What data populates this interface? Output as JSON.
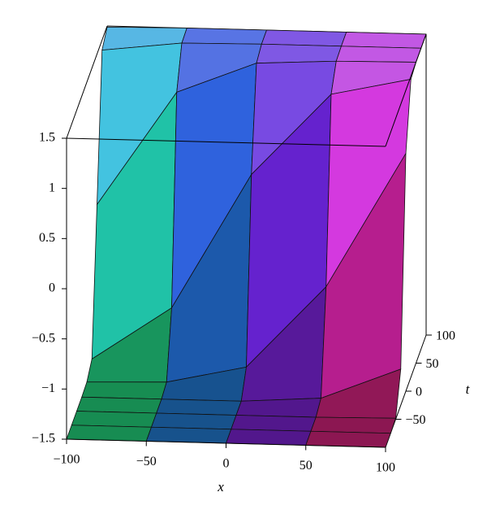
{
  "chart_data": {
    "type": "surface",
    "x": [
      -100,
      -50,
      0,
      50,
      100
    ],
    "t": [
      -100,
      -75,
      -50,
      -25,
      0,
      25,
      50,
      75,
      100
    ],
    "z": [
      [
        -1.5,
        -1.5,
        -1.5,
        -1.5,
        -1.5
      ],
      [
        -1.5,
        -1.5,
        -1.5,
        -1.5,
        -1.5
      ],
      [
        -1.5,
        -1.5,
        -1.5,
        -1.5,
        -1.49
      ],
      [
        -1.5,
        -1.5,
        -1.5,
        -1.45,
        -1.14
      ],
      [
        -1.49,
        -1.47,
        -1.3,
        -0.48,
        0.87
      ],
      [
        -1.4,
        -0.87,
        0.48,
        1.3,
        1.47
      ],
      [
        0,
        1.14,
        1.45,
        1.49,
        1.5
      ],
      [
        1.4,
        1.49,
        1.5,
        1.5,
        1.5
      ],
      [
        1.49,
        1.5,
        1.5,
        1.5,
        1.5
      ]
    ],
    "xlabel": "x",
    "tlabel": "t",
    "xlim": [
      -100,
      100
    ],
    "tlim": [
      -100,
      100
    ],
    "zlim": [
      -1.5,
      1.5
    ],
    "xticks": [
      {
        "value": -100,
        "label": "−100"
      },
      {
        "value": -50,
        "label": "−50"
      },
      0,
      50,
      100
    ],
    "tticks": [
      {
        "value": -50,
        "label": "−50"
      },
      0,
      50,
      100
    ],
    "zticks": [
      {
        "value": -1.5,
        "label": "−1.5"
      },
      {
        "value": -1,
        "label": "−1"
      },
      {
        "value": -0.5,
        "label": "−0.5"
      },
      0,
      0.5,
      1,
      1.5
    ]
  }
}
